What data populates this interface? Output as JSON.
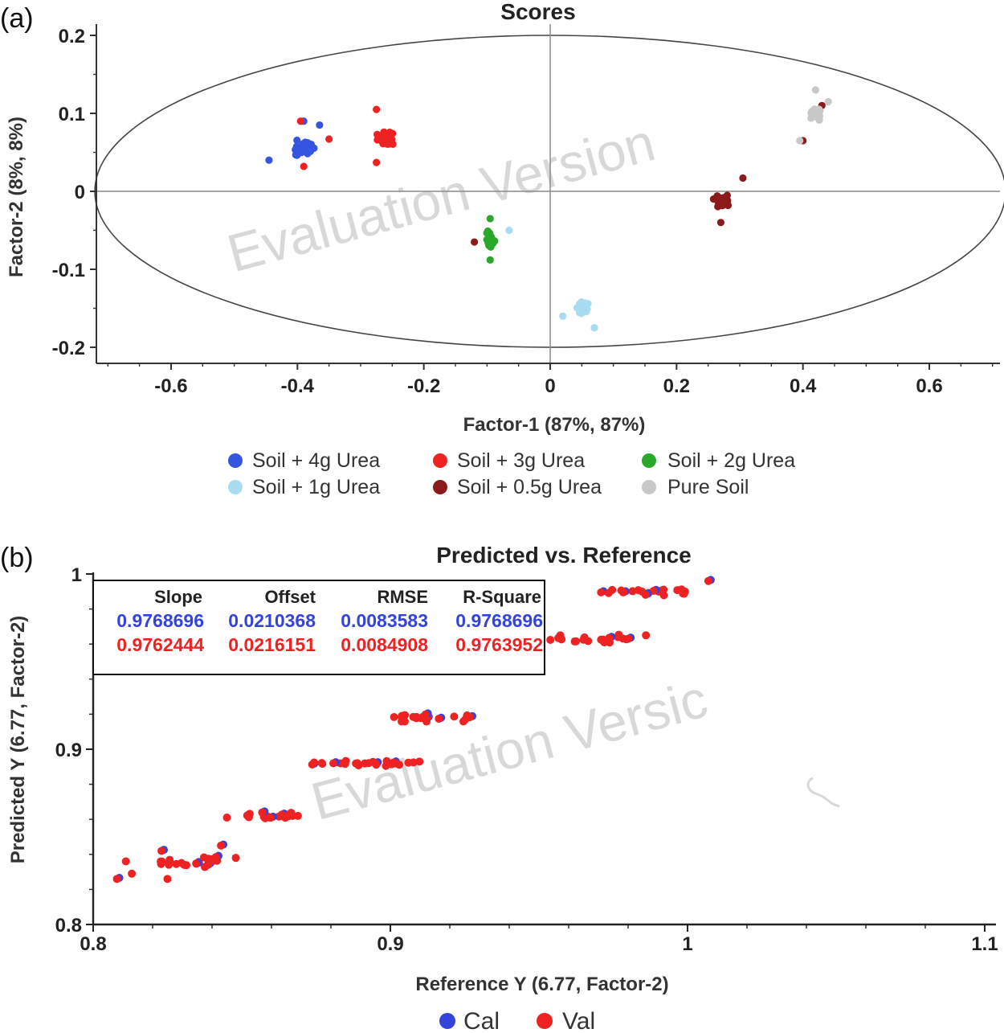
{
  "panel_labels": [
    "(a)",
    "(b)"
  ],
  "watermarks": [
    "Evaluation Version",
    "Evaluation Versic"
  ],
  "chart_data": [
    {
      "type": "scatter",
      "title": "Scores",
      "xlabel": "Factor-1 (87%, 87%)",
      "ylabel": "Factor-2 (8%, 8%)",
      "xlim": [
        -0.73,
        0.72
      ],
      "ylim": [
        -0.22,
        0.215
      ],
      "xticks": [
        -0.6,
        -0.4,
        -0.2,
        0,
        0.2,
        0.4,
        0.6
      ],
      "xtick_labels": [
        "-0.6",
        "-0.4",
        "-0.2",
        "0",
        "0.2",
        "0.4",
        "0.6"
      ],
      "yticks": [
        -0.2,
        -0.1,
        0,
        0.1,
        0.2
      ],
      "ytick_labels": [
        "-0.2",
        "-0.1",
        "0",
        "0.1",
        "0.2"
      ],
      "ellipse": {
        "center": [
          0,
          0
        ],
        "rx": 0.72,
        "ry": 0.2
      },
      "zero_lines": true,
      "legend_position": "bottom",
      "series": [
        {
          "name": "Soil + 4g Urea",
          "color": "#3355e0",
          "center": [
            -0.39,
            0.055
          ],
          "spread": [
            0.035,
            0.014
          ],
          "outliers": [
            [
              -0.445,
              0.04
            ],
            [
              -0.39,
              0.09
            ],
            [
              -0.365,
              0.085
            ]
          ]
        },
        {
          "name": "Soil + 3g Urea",
          "color": "#ee2222",
          "center": [
            -0.26,
            0.068
          ],
          "spread": [
            0.018,
            0.011
          ],
          "outliers": [
            [
              -0.275,
              0.105
            ],
            [
              -0.275,
              0.037
            ],
            [
              -0.35,
              0.067
            ],
            [
              -0.395,
              0.09
            ],
            [
              -0.39,
              0.032
            ]
          ]
        },
        {
          "name": "Soil + 2g Urea",
          "color": "#2aa82a",
          "center": [
            -0.095,
            -0.063
          ],
          "spread": [
            0.008,
            0.015
          ],
          "outliers": [
            [
              -0.095,
              -0.035
            ],
            [
              -0.095,
              -0.088
            ]
          ]
        },
        {
          "name": "Soil + 1g Urea",
          "color": "#a8dcf2",
          "center": [
            0.05,
            -0.148
          ],
          "spread": [
            0.013,
            0.009
          ],
          "outliers": [
            [
              -0.065,
              -0.05
            ],
            [
              0.07,
              -0.175
            ],
            [
              0.02,
              -0.16
            ]
          ]
        },
        {
          "name": "Soil + 0.5g Urea",
          "color": "#8b1a1a",
          "center": [
            0.27,
            -0.012
          ],
          "spread": [
            0.015,
            0.011
          ],
          "outliers": [
            [
              0.305,
              0.017
            ],
            [
              0.27,
              -0.04
            ],
            [
              0.4,
              0.065
            ],
            [
              0.43,
              0.11
            ],
            [
              -0.12,
              -0.065
            ]
          ]
        },
        {
          "name": "Pure Soil",
          "color": "#c8c8c8",
          "center": [
            0.42,
            0.1
          ],
          "spread": [
            0.012,
            0.01
          ],
          "outliers": [
            [
              0.42,
              0.13
            ],
            [
              0.395,
              0.065
            ],
            [
              0.44,
              0.115
            ]
          ]
        }
      ]
    },
    {
      "type": "scatter",
      "title": "Predicted vs. Reference",
      "xlabel": "Reference Y (6.77, Factor-2)",
      "ylabel": "Predicted Y (6.77, Factor-2)",
      "xlim": [
        0.8,
        1.1
      ],
      "ylim": [
        0.8,
        1.0
      ],
      "xticks": [
        0.8,
        0.9,
        1.0,
        1.1
      ],
      "xtick_labels": [
        "0.8",
        "0.9",
        "1",
        "1.1"
      ],
      "yticks": [
        0.8,
        0.9,
        1.0
      ],
      "ytick_labels": [
        "0.8",
        "0.9",
        "1"
      ],
      "legend_position": "bottom",
      "stats_table": {
        "headers": [
          "Slope",
          "Offset",
          "RMSE",
          "R-Square"
        ],
        "rows": [
          {
            "series": "Cal",
            "color": "#3344dd",
            "values": [
              "0.9768696",
              "0.0210368",
              "0.0083583",
              "0.9768696"
            ]
          },
          {
            "series": "Val",
            "color": "#ee2222",
            "values": [
              "0.9762444",
              "0.0216151",
              "0.0084908",
              "0.9763952"
            ]
          }
        ]
      },
      "clusters": [
        {
          "y": 0.836,
          "x_range": [
            0.822,
            0.842
          ],
          "n": 22,
          "y_jitter": 0.004
        },
        {
          "y": 0.862,
          "x_range": [
            0.85,
            0.87
          ],
          "n": 22,
          "y_jitter": 0.003
        },
        {
          "y": 0.892,
          "x_range": [
            0.87,
            0.91
          ],
          "n": 26,
          "y_jitter": 0.002
        },
        {
          "y": 0.918,
          "x_range": [
            0.9,
            0.928
          ],
          "n": 22,
          "y_jitter": 0.003
        },
        {
          "y": 0.963,
          "x_range": [
            0.952,
            0.982
          ],
          "n": 20,
          "y_jitter": 0.003
        },
        {
          "y": 0.99,
          "x_range": [
            0.97,
            1.0
          ],
          "n": 22,
          "y_jitter": 0.003
        }
      ],
      "extra_points": [
        [
          0.808,
          0.826
        ],
        [
          0.811,
          0.836
        ],
        [
          0.813,
          0.829
        ],
        [
          0.843,
          0.845
        ],
        [
          0.848,
          0.838
        ],
        [
          0.845,
          0.861
        ],
        [
          0.823,
          0.842
        ],
        [
          0.825,
          0.826
        ],
        [
          0.986,
          0.965
        ],
        [
          1.007,
          0.996
        ],
        [
          0.95,
          0.96
        ]
      ],
      "series": [
        {
          "name": "Cal",
          "color": "#3344dd"
        },
        {
          "name": "Val",
          "color": "#ee2222"
        }
      ]
    }
  ]
}
